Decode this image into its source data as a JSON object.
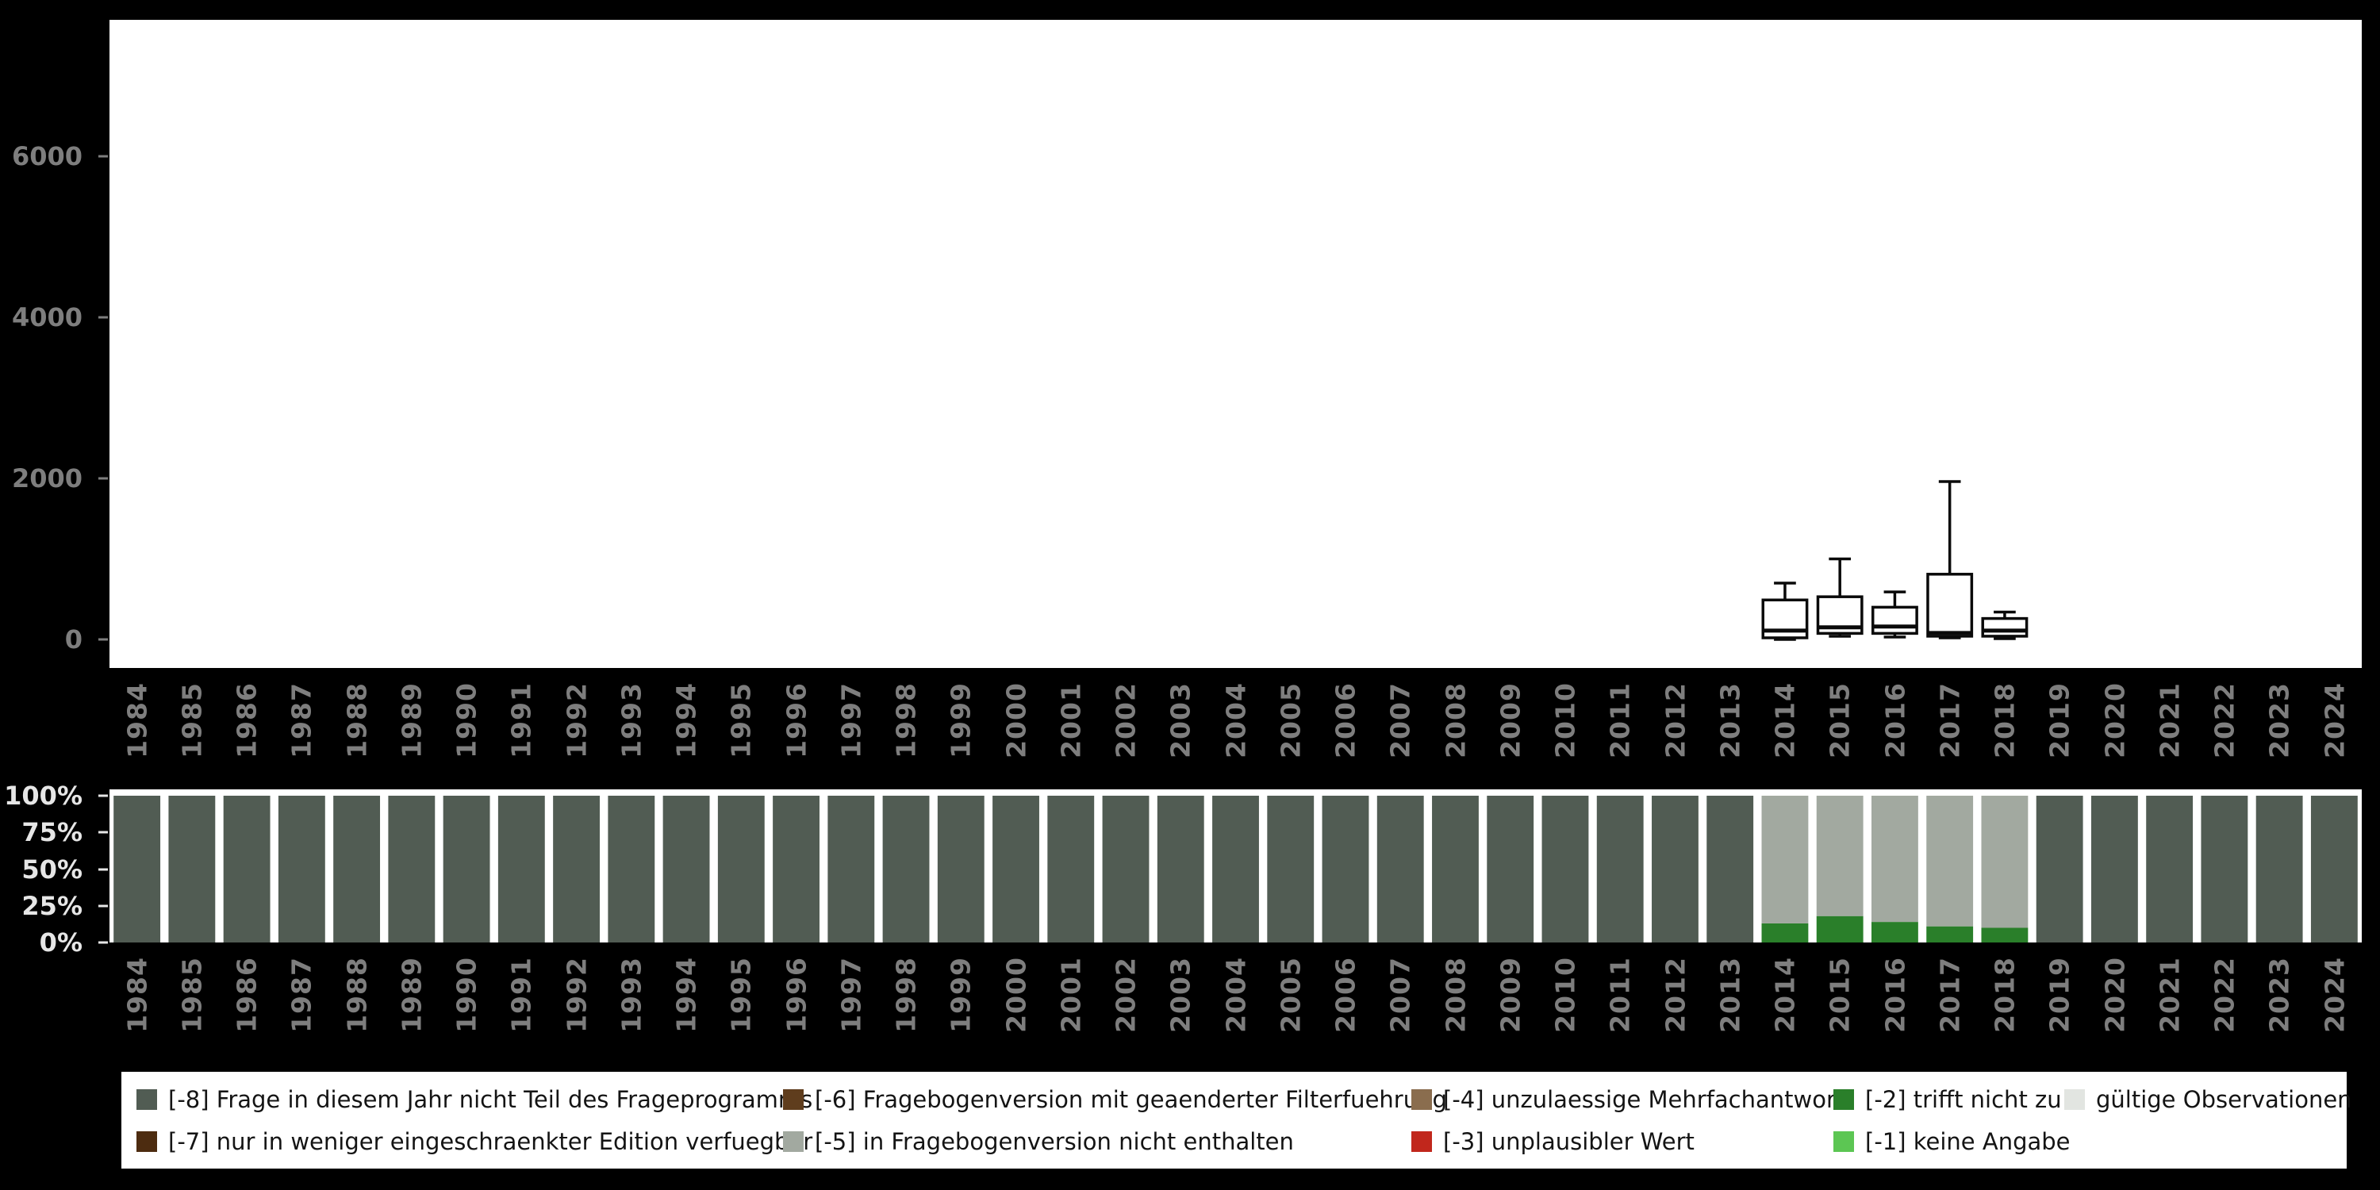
{
  "page": {
    "background": "#000000",
    "panel_background": "#ffffff",
    "axis_text_color": "#7e7e7e",
    "percent_text_color": "#e6e6e6"
  },
  "chart_data": [
    {
      "type": "boxplot",
      "title": "",
      "xlabel": "",
      "ylabel": "",
      "categories": [
        "1984",
        "1985",
        "1986",
        "1987",
        "1988",
        "1989",
        "1990",
        "1991",
        "1992",
        "1993",
        "1994",
        "1995",
        "1996",
        "1997",
        "1998",
        "1999",
        "2000",
        "2001",
        "2002",
        "2003",
        "2004",
        "2005",
        "2006",
        "2007",
        "2008",
        "2009",
        "2010",
        "2011",
        "2012",
        "2013",
        "2014",
        "2015",
        "2016",
        "2017",
        "2018",
        "2019",
        "2020",
        "2021",
        "2022",
        "2023",
        "2024"
      ],
      "ylim": [
        0,
        7700
      ],
      "y_ticks": [
        0,
        2000,
        4000,
        6000
      ],
      "grid": false,
      "boxes": [
        {
          "category": "2014",
          "whisker_low": 0,
          "q1": 20,
          "median": 110,
          "q3": 490,
          "whisker_high": 700
        },
        {
          "category": "2015",
          "whisker_low": 40,
          "q1": 75,
          "median": 150,
          "q3": 530,
          "whisker_high": 1000
        },
        {
          "category": "2016",
          "whisker_low": 30,
          "q1": 75,
          "median": 160,
          "q3": 400,
          "whisker_high": 590
        },
        {
          "category": "2017",
          "whisker_low": 20,
          "q1": 40,
          "median": 80,
          "q3": 810,
          "whisker_high": 1960
        },
        {
          "category": "2018",
          "whisker_low": 10,
          "q1": 40,
          "median": 110,
          "q3": 260,
          "whisker_high": 340
        }
      ],
      "box_stroke": "#0a0a0a",
      "box_fill": "#ffffff"
    },
    {
      "type": "bar",
      "stacked": true,
      "percent": true,
      "title": "",
      "xlabel": "",
      "ylabel": "",
      "categories": [
        "1984",
        "1985",
        "1986",
        "1987",
        "1988",
        "1989",
        "1990",
        "1991",
        "1992",
        "1993",
        "1994",
        "1995",
        "1996",
        "1997",
        "1998",
        "1999",
        "2000",
        "2001",
        "2002",
        "2003",
        "2004",
        "2005",
        "2006",
        "2007",
        "2008",
        "2009",
        "2010",
        "2011",
        "2012",
        "2013",
        "2014",
        "2015",
        "2016",
        "2017",
        "2018",
        "2019",
        "2020",
        "2021",
        "2022",
        "2023",
        "2024"
      ],
      "y_ticks": [
        "100%",
        "75%",
        "50%",
        "25%",
        "0%"
      ],
      "stack_order_note": "series listed bottom to top",
      "series": [
        {
          "name": "[-2] trifft nicht zu",
          "color": "#2a7f2a",
          "values": [
            0,
            0,
            0,
            0,
            0,
            0,
            0,
            0,
            0,
            0,
            0,
            0,
            0,
            0,
            0,
            0,
            0,
            0,
            0,
            0,
            0,
            0,
            0,
            0,
            0,
            0,
            0,
            0,
            0,
            0,
            13,
            18,
            14,
            11,
            10,
            0,
            0,
            0,
            0,
            0,
            0
          ]
        },
        {
          "name": "[-5] in Fragebogenversion nicht enthalten",
          "color": "#a2a9a0",
          "values": [
            0,
            0,
            0,
            0,
            0,
            0,
            0,
            0,
            0,
            0,
            0,
            0,
            0,
            0,
            0,
            0,
            0,
            0,
            0,
            0,
            0,
            0,
            0,
            0,
            0,
            0,
            0,
            0,
            0,
            0,
            87,
            82,
            86,
            89,
            90,
            0,
            0,
            0,
            0,
            0,
            0
          ]
        },
        {
          "name": "[-8] Frage in diesem Jahr nicht Teil des Frageprogramms",
          "color": "#515c53",
          "values": [
            100,
            100,
            100,
            100,
            100,
            100,
            100,
            100,
            100,
            100,
            100,
            100,
            100,
            100,
            100,
            100,
            100,
            100,
            100,
            100,
            100,
            100,
            100,
            100,
            100,
            100,
            100,
            100,
            100,
            100,
            0,
            0,
            0,
            0,
            0,
            100,
            100,
            100,
            100,
            100,
            100
          ]
        }
      ]
    }
  ],
  "legend": {
    "columns": [
      [
        {
          "label": "[-8] Frage in diesem Jahr nicht Teil des Frageprogramms",
          "color": "#515c53"
        },
        {
          "label": "[-7] nur in weniger eingeschraenkter Edition verfuegbar",
          "color": "#4d2c10"
        }
      ],
      [
        {
          "label": "[-6] Fragebogenversion mit geaenderter Filterfuehrung",
          "color": "#5f3d1d"
        },
        {
          "label": "[-5] in Fragebogenversion nicht enthalten",
          "color": "#a2a9a0"
        }
      ],
      [
        {
          "label": "[-4] unzulaessige Mehrfachantwort",
          "color": "#8a6d4e"
        },
        {
          "label": "[-3] unplausibler Wert",
          "color": "#c1271c"
        }
      ],
      [
        {
          "label": "[-2] trifft nicht zu",
          "color": "#2a7f2a"
        },
        {
          "label": "[-1] keine Angabe",
          "color": "#5cc653"
        }
      ],
      [
        {
          "label": "gültige Observationen",
          "color": "#e2e5e1"
        }
      ]
    ]
  }
}
